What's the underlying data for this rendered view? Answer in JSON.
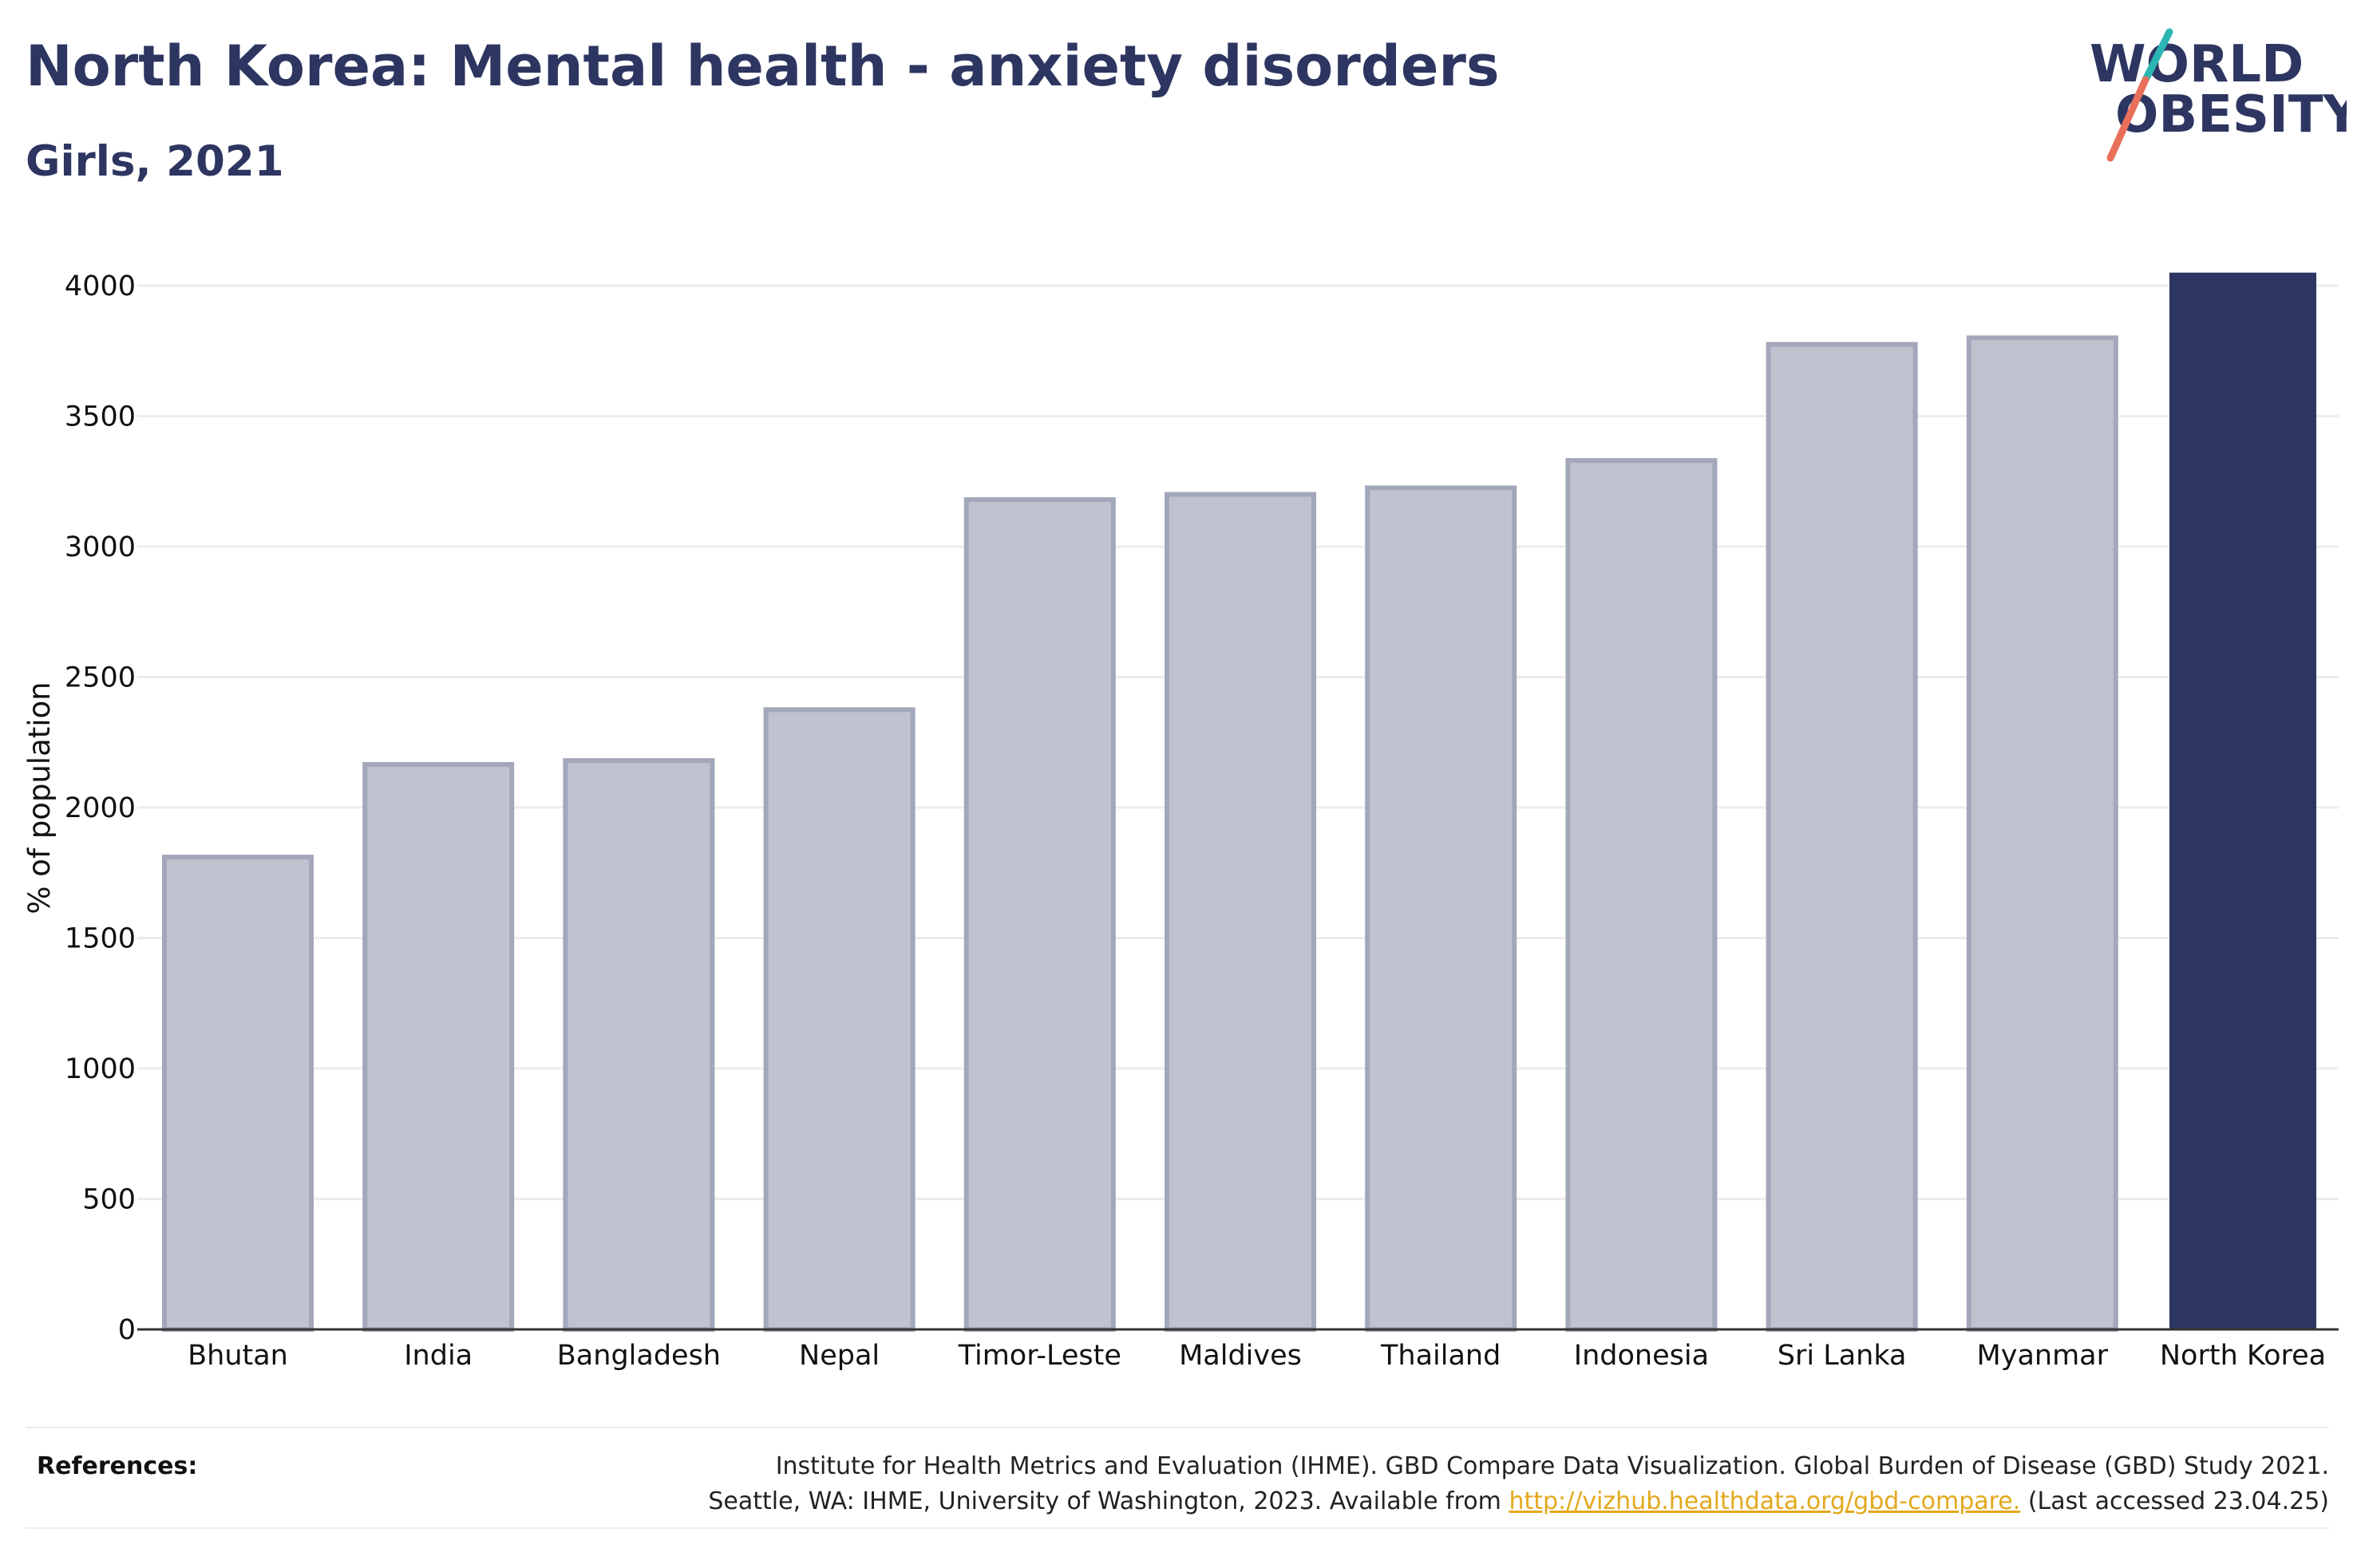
{
  "header": {
    "title": "North Korea: Mental health - anxiety disorders",
    "subtitle": "Girls, 2021"
  },
  "logo": {
    "line1": "WORLD",
    "line2": "OBESITY",
    "colors": {
      "text": "#2d3561",
      "slash_teal": "#2bb5b5",
      "slash_coral": "#e8705a"
    }
  },
  "colors": {
    "bar_muted": "#bfc2cf",
    "bar_muted_border": "#a3a7ba",
    "bar_highlight": "#2d3561",
    "gridline": "#ececec",
    "axis": "#333333"
  },
  "chart_data": {
    "type": "bar",
    "title": "North Korea: Mental health - anxiety disorders",
    "subtitle": "Girls, 2021",
    "xlabel": "",
    "ylabel": "% of population",
    "categories": [
      "Bhutan",
      "India",
      "Bangladesh",
      "Nepal",
      "Timor-Leste",
      "Maldives",
      "Thailand",
      "Indonesia",
      "Sri Lanka",
      "Myanmar",
      "North Korea"
    ],
    "values": [
      1810,
      2165,
      2180,
      2375,
      3180,
      3200,
      3225,
      3330,
      3775,
      3800,
      4050
    ],
    "highlight": "North Korea",
    "ylim": [
      0,
      4000
    ],
    "yticks": [
      0,
      500,
      1000,
      1500,
      2000,
      2500,
      3000,
      3500,
      4000
    ],
    "grid": true,
    "legend": "none"
  },
  "references": {
    "label": "References:",
    "line1": "Institute for Health Metrics and Evaluation (IHME). GBD Compare Data Visualization. Global Burden of Disease (GBD) Study 2021.",
    "line2_prefix": "Seattle, WA: IHME, University of Washington, 2023. Available from",
    "link": "http://vizhub.healthdata.org/gbd-compare.",
    "line2_suffix": "(Last accessed 23.04.25)"
  }
}
